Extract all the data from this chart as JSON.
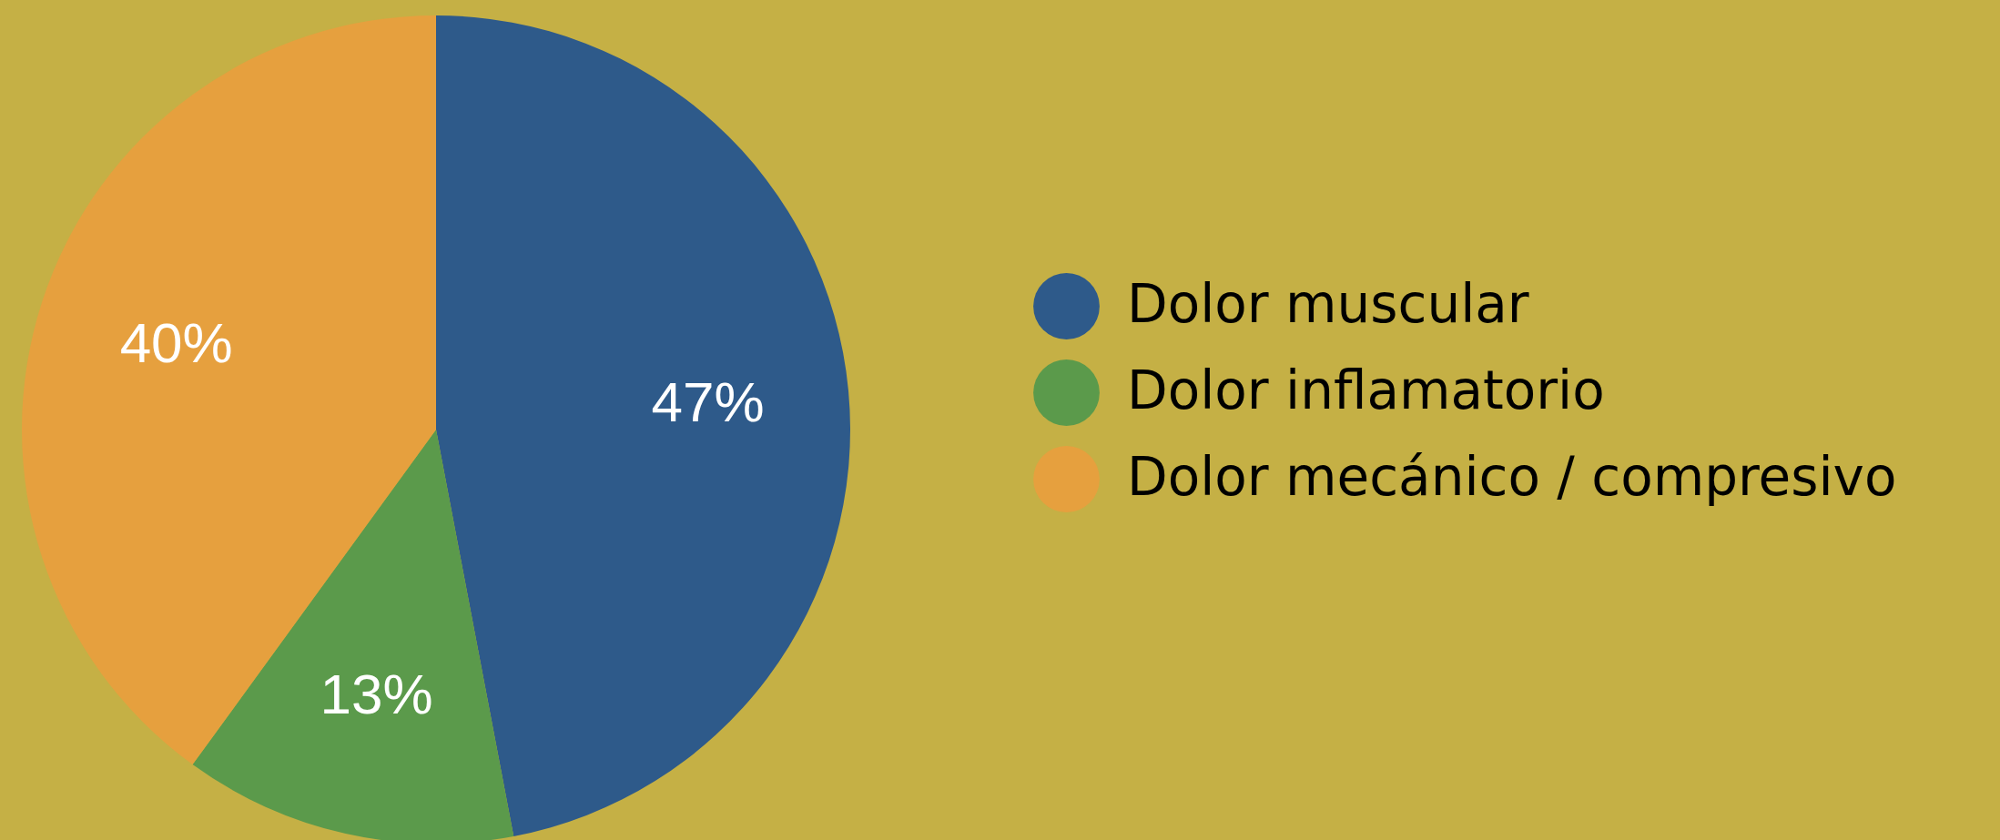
{
  "chart_data": {
    "type": "pie",
    "categories": [
      "Dolor muscular",
      "Dolor inflamatorio",
      "Dolor mecánico / compresivo"
    ],
    "values": [
      47,
      13,
      40
    ],
    "colors": [
      "#2e5a8a",
      "#5b9a4b",
      "#e6a03e"
    ],
    "value_labels": [
      "47%",
      "13%",
      "40%"
    ],
    "legend": "right"
  }
}
